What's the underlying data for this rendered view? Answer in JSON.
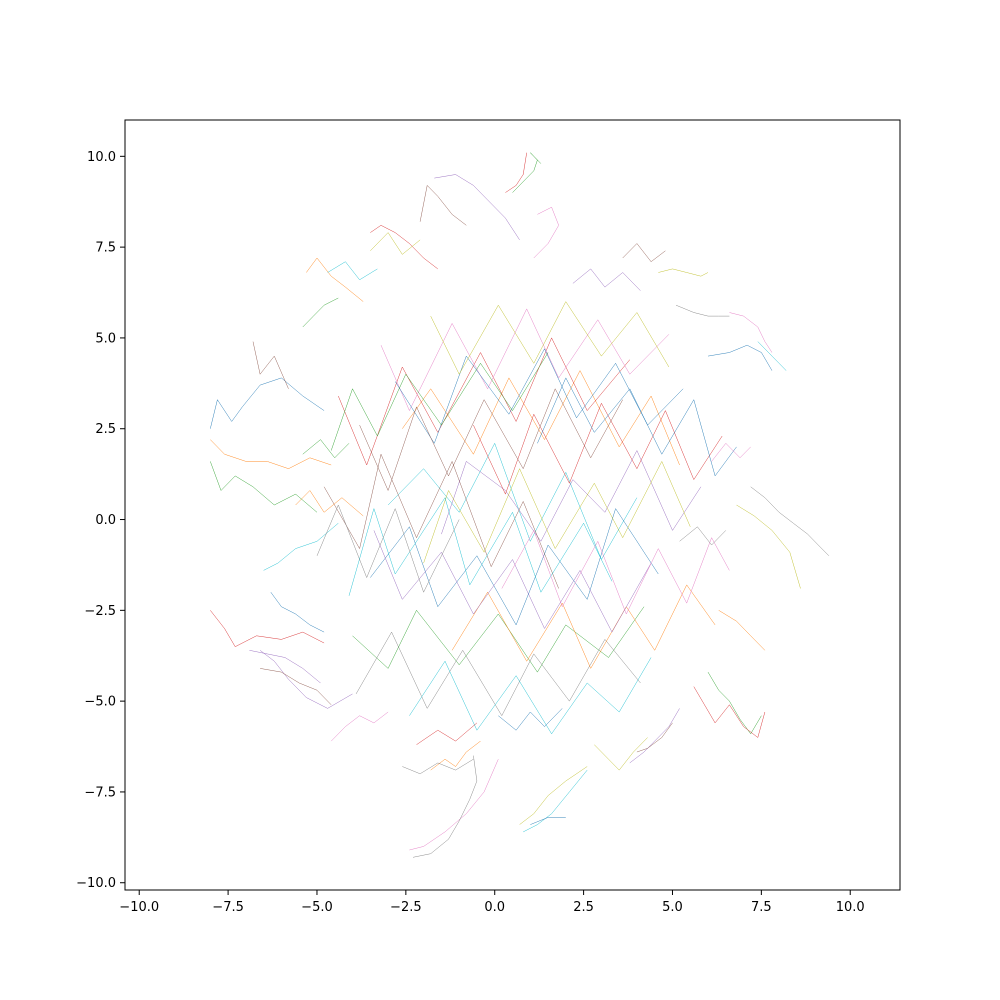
{
  "chart_data": {
    "type": "line",
    "title": "",
    "xlabel": "",
    "ylabel": "",
    "xlim": [
      -10.4,
      11.4
    ],
    "ylim": [
      -10.2,
      11.0
    ],
    "x_ticks": [
      -10.0,
      -7.5,
      -5.0,
      -2.5,
      0.0,
      2.5,
      5.0,
      7.5,
      10.0
    ],
    "x_tick_labels": [
      "−10.0",
      "−7.5",
      "−5.0",
      "−2.5",
      "0.0",
      "2.5",
      "5.0",
      "7.5",
      "10.0"
    ],
    "y_ticks": [
      10.0,
      7.5,
      5.0,
      2.5,
      0.0,
      -2.5,
      -5.0,
      -7.5,
      -10.0
    ],
    "y_tick_labels": [
      "10.0",
      "7.5",
      "5.0",
      "2.5",
      "0.0",
      "−2.5",
      "−5.0",
      "−7.5",
      "−10.0"
    ],
    "grid": false,
    "legend": "none",
    "colors": [
      "#1f77b4",
      "#ff7f0e",
      "#2ca02c",
      "#d62728",
      "#9467bd",
      "#8c564b",
      "#e377c2",
      "#7f7f7f",
      "#bcbd22",
      "#17becf"
    ],
    "series": [
      {
        "x": [
          -8.0,
          -7.8,
          -7.4,
          -7.1,
          -6.6,
          -6.0,
          -5.4,
          -4.8
        ],
        "y": [
          2.5,
          3.3,
          2.7,
          3.1,
          3.7,
          3.9,
          3.4,
          3.0
        ]
      },
      {
        "x": [
          -8.0,
          -7.6,
          -7.0,
          -6.4,
          -5.8,
          -5.2,
          -4.6
        ],
        "y": [
          2.2,
          1.8,
          1.6,
          1.6,
          1.4,
          1.7,
          1.5
        ]
      },
      {
        "x": [
          -8.0,
          -7.7,
          -7.3,
          -6.8,
          -6.2,
          -5.6,
          -5.0
        ],
        "y": [
          1.6,
          0.8,
          1.2,
          0.9,
          0.4,
          0.7,
          0.2
        ]
      },
      {
        "x": [
          -8.0,
          -7.6,
          -7.3,
          -6.7,
          -6.0,
          -5.4,
          -4.8
        ],
        "y": [
          -2.5,
          -3.0,
          -3.5,
          -3.2,
          -3.3,
          -3.1,
          -3.4
        ]
      },
      {
        "x": [
          -6.6,
          -6.2,
          -5.8,
          -5.3,
          -4.7,
          -4.0
        ],
        "y": [
          -3.6,
          -3.9,
          -4.4,
          -4.9,
          -5.2,
          -4.8
        ]
      },
      {
        "x": [
          -6.8,
          -6.6,
          -6.2,
          -5.8
        ],
        "y": [
          4.9,
          4.0,
          4.5,
          3.6
        ]
      },
      {
        "x": [
          -2.4,
          -2.0,
          -1.4,
          -0.8,
          -0.3,
          0.1
        ],
        "y": [
          -9.1,
          -9.0,
          -8.6,
          -8.1,
          -7.5,
          -6.6
        ]
      },
      {
        "x": [
          -2.3,
          -1.8,
          -1.3,
          -1.0,
          -0.7,
          -0.5,
          -0.6
        ],
        "y": [
          -9.3,
          -9.2,
          -8.8,
          -8.3,
          -7.7,
          -7.2,
          -6.5
        ]
      },
      {
        "x": [
          0.7,
          1.1,
          1.5,
          2.0,
          2.6
        ],
        "y": [
          -8.4,
          -8.1,
          -7.6,
          -7.2,
          -6.8
        ]
      },
      {
        "x": [
          0.8,
          1.2,
          1.6,
          2.1,
          2.6
        ],
        "y": [
          -8.6,
          -8.4,
          -8.1,
          -7.5,
          -6.9
        ]
      },
      {
        "x": [
          1.0,
          1.5,
          2.0
        ],
        "y": [
          -8.4,
          -8.2,
          -8.2
        ]
      },
      {
        "x": [
          -1.8,
          -1.4,
          -1.1,
          -0.8,
          -0.4
        ],
        "y": [
          -6.9,
          -6.6,
          -6.8,
          -6.4,
          -6.1
        ]
      },
      {
        "x": [
          0.5,
          0.9,
          1.1,
          1.2,
          1.0,
          1.3
        ],
        "y": [
          9.0,
          9.4,
          9.6,
          9.9,
          10.1,
          9.8
        ]
      },
      {
        "x": [
          0.3,
          0.6,
          0.8,
          0.9
        ],
        "y": [
          9.0,
          9.2,
          9.5,
          10.1
        ]
      },
      {
        "x": [
          -1.7,
          -1.1,
          -0.6,
          -0.2,
          0.3,
          0.7
        ],
        "y": [
          9.4,
          9.5,
          9.2,
          8.8,
          8.3,
          7.7
        ]
      },
      {
        "x": [
          -2.1,
          -1.9,
          -1.6,
          -1.2,
          -0.8
        ],
        "y": [
          8.2,
          9.2,
          8.9,
          8.4,
          8.1
        ]
      },
      {
        "x": [
          1.2,
          1.6,
          1.8,
          1.5,
          1.1
        ],
        "y": [
          8.4,
          8.6,
          8.1,
          7.6,
          7.2
        ]
      },
      {
        "x": [
          7.2,
          7.6,
          8.0,
          8.4,
          8.8,
          9.1,
          9.4
        ],
        "y": [
          0.9,
          0.6,
          0.2,
          -0.1,
          -0.4,
          -0.7,
          -1.0
        ]
      },
      {
        "x": [
          6.8,
          7.3,
          7.8,
          8.3,
          8.6
        ],
        "y": [
          0.4,
          0.1,
          -0.3,
          -0.9,
          -1.9
        ]
      },
      {
        "x": [
          7.4,
          7.8,
          8.0,
          8.2
        ],
        "y": [
          4.9,
          4.5,
          4.3,
          4.1
        ]
      },
      {
        "x": [
          6.0,
          6.6,
          7.1,
          7.5,
          7.8
        ],
        "y": [
          4.5,
          4.6,
          4.8,
          4.6,
          4.1
        ]
      },
      {
        "x": [
          6.3,
          6.8,
          7.2,
          7.6
        ],
        "y": [
          -2.5,
          -2.8,
          -3.2,
          -3.6
        ]
      },
      {
        "x": [
          6.0,
          6.3,
          6.6,
          6.9,
          7.2,
          7.5
        ],
        "y": [
          -4.2,
          -4.7,
          -5.0,
          -5.5,
          -5.9,
          -5.4
        ]
      },
      {
        "x": [
          5.6,
          5.9,
          6.2,
          6.6,
          7.0,
          7.4,
          7.6
        ],
        "y": [
          -4.6,
          -5.1,
          -5.6,
          -5.1,
          -5.7,
          -6.0,
          -5.3
        ]
      },
      {
        "x": [
          3.8,
          4.2,
          4.5,
          4.9,
          5.2
        ],
        "y": [
          -6.7,
          -6.4,
          -6.1,
          -5.7,
          -5.2
        ]
      },
      {
        "x": [
          4.0,
          4.3,
          4.7,
          5.0
        ],
        "y": [
          -6.4,
          -6.3,
          -6.0,
          -5.6
        ]
      },
      {
        "x": [
          6.6,
          7.0,
          7.4,
          7.6,
          7.8
        ],
        "y": [
          5.7,
          5.6,
          5.3,
          4.9,
          4.6
        ]
      },
      {
        "x": [
          5.1,
          5.6,
          6.0,
          6.3,
          6.6
        ],
        "y": [
          5.9,
          5.7,
          5.6,
          5.6,
          5.6
        ]
      },
      {
        "x": [
          4.6,
          5.0,
          5.4,
          5.8,
          6.0
        ],
        "y": [
          6.8,
          6.9,
          6.8,
          6.7,
          6.8
        ]
      },
      {
        "x": [
          -6.5,
          -6.1,
          -5.6,
          -5.0,
          -4.4
        ],
        "y": [
          -1.4,
          -1.2,
          -0.8,
          -0.6,
          -0.1
        ]
      },
      {
        "x": [
          -6.3,
          -6.0,
          -5.6,
          -5.2,
          -4.8
        ],
        "y": [
          -2.0,
          -2.4,
          -2.6,
          -2.9,
          -3.1
        ]
      },
      {
        "x": [
          -5.3,
          -5.0,
          -4.6,
          -4.2,
          -3.7
        ],
        "y": [
          6.8,
          7.2,
          6.7,
          6.4,
          6.0
        ]
      },
      {
        "x": [
          -5.4,
          -5.1,
          -4.8,
          -4.4
        ],
        "y": [
          5.3,
          5.6,
          5.9,
          6.1
        ]
      },
      {
        "x": [
          -3.5,
          -3.2,
          -2.8,
          -2.4,
          -2.0,
          -1.6
        ],
        "y": [
          7.9,
          8.1,
          7.9,
          7.6,
          7.2,
          6.9
        ]
      },
      {
        "x": [
          -6.9,
          -6.4,
          -5.9,
          -5.4,
          -4.9
        ],
        "y": [
          -3.6,
          -3.7,
          -3.8,
          -4.1,
          -4.5
        ]
      },
      {
        "x": [
          -6.6,
          -6.0,
          -5.5,
          -5.0,
          -4.6
        ],
        "y": [
          -4.1,
          -4.2,
          -4.5,
          -4.7,
          -5.1
        ]
      },
      {
        "x": [
          -4.6,
          -4.2,
          -3.8,
          -3.4,
          -3.0
        ],
        "y": [
          -6.1,
          -5.7,
          -5.4,
          -5.6,
          -5.3
        ]
      },
      {
        "x": [
          -2.6,
          -2.1,
          -1.6,
          -1.1,
          -0.6
        ],
        "y": [
          -6.8,
          -7.0,
          -6.7,
          -6.9,
          -6.6
        ]
      },
      {
        "x": [
          2.8,
          3.2,
          3.5,
          3.9,
          4.3
        ],
        "y": [
          -6.2,
          -6.6,
          -6.9,
          -6.4,
          -6.0
        ]
      },
      {
        "x": [
          -3.0,
          -2.0,
          -1.0,
          0.0,
          1.0,
          2.0,
          3.0,
          4.0
        ],
        "y": [
          0.4,
          1.4,
          0.2,
          2.1,
          -0.6,
          1.3,
          -1.1,
          0.6
        ]
      },
      {
        "x": [
          -3.5,
          -2.4,
          -1.6,
          -0.5,
          0.6,
          1.5,
          2.6,
          3.4,
          4.6
        ],
        "y": [
          -1.6,
          -0.2,
          -2.4,
          -1.0,
          -2.9,
          -0.7,
          -2.2,
          0.3,
          -1.5
        ]
      },
      {
        "x": [
          -2.6,
          -1.8,
          -0.6,
          0.4,
          1.4,
          2.4,
          3.5,
          4.4,
          5.2
        ],
        "y": [
          2.5,
          3.6,
          1.8,
          3.9,
          2.2,
          4.1,
          2.0,
          3.4,
          1.5
        ]
      },
      {
        "x": [
          -4.0,
          -3.0,
          -2.2,
          -1.0,
          0.1,
          1.2,
          2.0,
          3.2,
          4.2
        ],
        "y": [
          -3.2,
          -4.1,
          -2.5,
          -4.0,
          -2.6,
          -4.2,
          -2.9,
          -3.8,
          -2.4
        ]
      },
      {
        "x": [
          -4.4,
          -3.6,
          -2.6,
          -1.6,
          -0.4,
          0.6,
          1.6,
          2.6,
          3.8
        ],
        "y": [
          3.4,
          1.5,
          4.2,
          2.4,
          4.6,
          2.7,
          5.0,
          3.0,
          4.4
        ]
      },
      {
        "x": [
          -1.5,
          -0.8,
          0.3,
          1.3,
          2.2,
          3.1,
          4.0,
          5.0,
          5.8
        ],
        "y": [
          -0.4,
          1.6,
          0.8,
          -0.6,
          1.1,
          0.2,
          1.9,
          -0.3,
          0.9
        ]
      },
      {
        "x": [
          -4.8,
          -3.8,
          -3.2,
          -2.2,
          -1.2,
          -0.1,
          0.8,
          1.8
        ],
        "y": [
          0.9,
          -0.8,
          1.8,
          -0.5,
          1.6,
          -1.3,
          0.5,
          -1.9
        ]
      },
      {
        "x": [
          -3.2,
          -2.4,
          -1.2,
          -0.2,
          0.9,
          1.8,
          2.9,
          3.8,
          4.9
        ],
        "y": [
          4.8,
          3.0,
          5.4,
          3.6,
          5.8,
          3.9,
          5.5,
          4.0,
          5.1
        ]
      },
      {
        "x": [
          -3.9,
          -2.9,
          -1.9,
          -0.9,
          0.2,
          1.1,
          2.1,
          3.1,
          4.1
        ],
        "y": [
          -4.8,
          -3.1,
          -5.2,
          -3.6,
          -5.4,
          -3.7,
          -5.0,
          -3.3,
          -4.5
        ]
      },
      {
        "x": [
          -2.0,
          -1.3,
          -0.3,
          0.7,
          1.7,
          2.8,
          3.6,
          4.7,
          5.5
        ],
        "y": [
          -1.2,
          0.8,
          -0.9,
          1.4,
          -0.8,
          1.0,
          -0.5,
          1.6,
          -0.2
        ]
      },
      {
        "x": [
          -4.1,
          -3.4,
          -2.8,
          -1.4,
          -0.7,
          0.5,
          1.3,
          2.5,
          3.3
        ],
        "y": [
          -2.1,
          0.3,
          -1.5,
          0.6,
          -1.8,
          0.2,
          -2.0,
          -0.1,
          -1.7
        ]
      },
      {
        "x": [
          -2.8,
          -1.7,
          -0.8,
          0.4,
          1.4,
          2.3,
          3.4,
          4.3,
          5.3
        ],
        "y": [
          3.8,
          2.1,
          4.5,
          2.9,
          4.7,
          2.8,
          4.3,
          2.6,
          3.6
        ]
      },
      {
        "x": [
          -1.2,
          -0.2,
          0.9,
          1.9,
          2.7,
          3.7,
          4.5,
          5.4,
          6.2
        ],
        "y": [
          -3.6,
          -2.0,
          -3.9,
          -2.3,
          -4.1,
          -2.4,
          -3.6,
          -1.8,
          -2.9
        ]
      },
      {
        "x": [
          -4.6,
          -4.0,
          -3.3,
          -2.5,
          -1.5,
          -0.4,
          0.5,
          1.5
        ],
        "y": [
          1.9,
          3.6,
          2.3,
          4.0,
          2.6,
          4.3,
          3.0,
          4.6
        ]
      },
      {
        "x": [
          -0.6,
          0.3,
          1.1,
          2.1,
          3.0,
          4.0,
          4.8,
          5.6,
          6.4
        ],
        "y": [
          2.6,
          0.7,
          2.9,
          1.0,
          3.2,
          1.4,
          3.0,
          1.1,
          2.3
        ]
      },
      {
        "x": [
          -3.4,
          -2.6,
          -1.5,
          -0.6,
          0.5,
          1.4,
          2.4,
          3.3,
          4.4
        ],
        "y": [
          -0.3,
          -2.2,
          -0.9,
          -2.6,
          -1.1,
          -3.0,
          -1.4,
          -3.1,
          -1.2
        ]
      },
      {
        "x": [
          -3.8,
          -3.0,
          -2.2,
          -1.3,
          -0.3,
          0.8,
          1.7,
          2.7,
          3.6
        ],
        "y": [
          2.6,
          0.8,
          3.1,
          1.2,
          3.3,
          1.4,
          3.6,
          1.7,
          3.3
        ]
      },
      {
        "x": [
          0.2,
          1.1,
          1.9,
          2.9,
          3.7,
          4.6,
          5.4,
          6.1,
          6.6
        ],
        "y": [
          -1.9,
          -0.3,
          -2.4,
          -0.6,
          -2.6,
          -0.8,
          -2.3,
          -0.5,
          -1.4
        ]
      },
      {
        "x": [
          -5.0,
          -4.4,
          -3.6,
          -2.8,
          -2.0,
          -1.0
        ],
        "y": [
          -1.0,
          0.4,
          -1.6,
          0.3,
          -2.0,
          0.0
        ]
      },
      {
        "x": [
          -1.8,
          -1.0,
          0.1,
          1.1,
          2.0,
          3.0,
          4.0,
          4.9
        ],
        "y": [
          5.6,
          4.0,
          5.9,
          4.3,
          6.0,
          4.5,
          5.7,
          4.2
        ]
      },
      {
        "x": [
          -2.4,
          -1.4,
          -0.5,
          0.6,
          1.6,
          2.6,
          3.5,
          4.4
        ],
        "y": [
          -5.4,
          -3.9,
          -5.8,
          -4.3,
          -5.9,
          -4.5,
          -5.3,
          -3.8
        ]
      },
      {
        "x": [
          1.2,
          2.0,
          2.8,
          3.8,
          4.7,
          5.6,
          6.2,
          6.8
        ],
        "y": [
          2.1,
          3.9,
          2.4,
          3.6,
          1.8,
          3.3,
          1.2,
          2.0
        ]
      },
      {
        "x": [
          -5.6,
          -5.2,
          -4.8,
          -4.3,
          -3.7
        ],
        "y": [
          0.4,
          0.8,
          0.2,
          0.6,
          0.1
        ]
      },
      {
        "x": [
          -5.4,
          -4.9,
          -4.5,
          -4.1
        ],
        "y": [
          1.8,
          2.2,
          1.7,
          2.1
        ]
      },
      {
        "x": [
          -2.2,
          -1.6,
          -1.1,
          -0.5
        ],
        "y": [
          -6.2,
          -5.8,
          -6.1,
          -5.6
        ]
      },
      {
        "x": [
          2.2,
          2.7,
          3.1,
          3.6,
          4.1
        ],
        "y": [
          6.5,
          6.9,
          6.4,
          6.8,
          6.3
        ]
      },
      {
        "x": [
          3.6,
          4.0,
          4.4,
          4.8
        ],
        "y": [
          7.2,
          7.6,
          7.1,
          7.4
        ]
      },
      {
        "x": [
          6.1,
          6.5,
          6.9,
          7.2
        ],
        "y": [
          1.6,
          2.1,
          1.7,
          2.0
        ]
      },
      {
        "x": [
          5.2,
          5.7,
          6.1,
          6.5
        ],
        "y": [
          -0.6,
          -0.2,
          -0.7,
          -0.3
        ]
      },
      {
        "x": [
          -3.5,
          -3.0,
          -2.6,
          -2.1
        ],
        "y": [
          7.4,
          7.9,
          7.3,
          7.7
        ]
      },
      {
        "x": [
          -4.7,
          -4.2,
          -3.8,
          -3.3
        ],
        "y": [
          6.8,
          7.1,
          6.6,
          6.9
        ]
      },
      {
        "x": [
          0.1,
          0.6,
          1.0,
          1.4,
          1.9
        ],
        "y": [
          -5.4,
          -5.8,
          -5.3,
          -5.7,
          -5.2
        ]
      }
    ]
  }
}
